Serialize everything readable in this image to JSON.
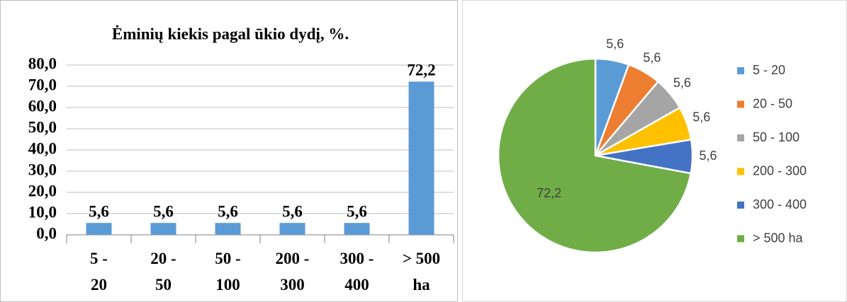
{
  "chart_data": [
    {
      "type": "bar",
      "title": "Ėminių kiekis pagal ūkio dydį, %.",
      "categories": [
        "5 - 20",
        "20 - 50",
        "50 - 100",
        "200 - 300",
        "300 - 400",
        "> 500 ha"
      ],
      "values": [
        5.6,
        5.6,
        5.6,
        5.6,
        5.6,
        72.2
      ],
      "value_labels": [
        "5,6",
        "5,6",
        "5,6",
        "5,6",
        "5,6",
        "72,2"
      ],
      "color": "#5b9bd5",
      "ylim": [
        0,
        80
      ],
      "yticks": [
        {
          "value": 0,
          "label": "0,0"
        },
        {
          "value": 10,
          "label": "10,0"
        },
        {
          "value": 20,
          "label": "20,0"
        },
        {
          "value": 30,
          "label": "30,0"
        },
        {
          "value": 40,
          "label": "40,0"
        },
        {
          "value": 50,
          "label": "50,0"
        },
        {
          "value": 60,
          "label": "60,0"
        },
        {
          "value": 70,
          "label": "70,0"
        },
        {
          "value": 80,
          "label": "80,0"
        }
      ],
      "grid": true
    },
    {
      "type": "pie",
      "categories": [
        "5 - 20",
        "20 - 50",
        "50 - 100",
        "200 - 300",
        "300 - 400",
        "> 500 ha"
      ],
      "values": [
        5.6,
        5.6,
        5.6,
        5.6,
        5.6,
        72.2
      ],
      "value_labels": [
        "5,6",
        "5,6",
        "5,6",
        "5,6",
        "5,6",
        "72,2"
      ],
      "colors": [
        "#5b9bd5",
        "#ed7d31",
        "#a5a5a5",
        "#ffc000",
        "#4472c4",
        "#70ad47"
      ],
      "legend": "right"
    }
  ]
}
